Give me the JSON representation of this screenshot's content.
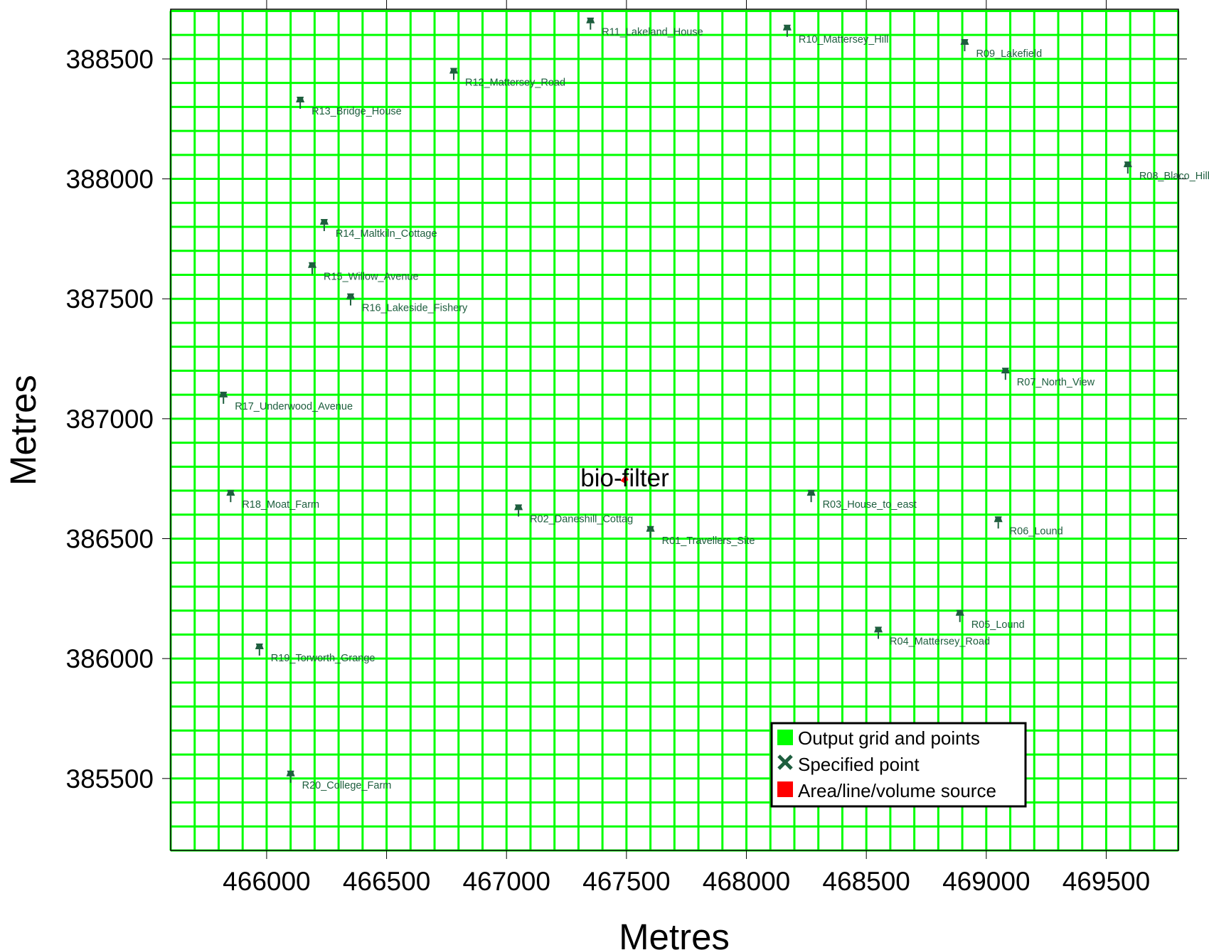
{
  "chart_data": {
    "type": "map",
    "xlabel": "Metres",
    "ylabel": "Metres",
    "xlim": [
      465600,
      469800
    ],
    "ylim": [
      385200,
      388700
    ],
    "x_ticks": [
      466000,
      466500,
      467000,
      467500,
      468000,
      468500,
      469000,
      469500
    ],
    "y_ticks": [
      385500,
      386000,
      386500,
      387000,
      387500,
      388000,
      388500
    ],
    "grid": {
      "x_start": 465600,
      "y_start": 385200,
      "spacing": 100,
      "nx": 42,
      "ny": 35,
      "color": "#00ff00"
    },
    "receptor_color": "#1e5e3e",
    "source_color": "#ff0000",
    "receptors": [
      {
        "label": "R01_Travellers_Site",
        "x": 467600,
        "y": 386520
      },
      {
        "label": "R02_Daneshill_Cottag",
        "x": 467050,
        "y": 386610
      },
      {
        "label": "R03_House_to_east",
        "x": 468270,
        "y": 386670
      },
      {
        "label": "R04_Mattersey_Road",
        "x": 468550,
        "y": 386100
      },
      {
        "label": "R05_Lound",
        "x": 468890,
        "y": 386170
      },
      {
        "label": "R06_Lound",
        "x": 469050,
        "y": 386560
      },
      {
        "label": "R07_North_View",
        "x": 469080,
        "y": 387180
      },
      {
        "label": "R08_Blaco_Hill",
        "x": 469590,
        "y": 388040
      },
      {
        "label": "R09_Lakefield",
        "x": 468910,
        "y": 388550
      },
      {
        "label": "R10_Mattersey_Hill",
        "x": 468170,
        "y": 388610
      },
      {
        "label": "R11_Lakeland_House",
        "x": 467350,
        "y": 388640
      },
      {
        "label": "R12_Mattersey_Road",
        "x": 466780,
        "y": 388430
      },
      {
        "label": "R13_Bridge_House",
        "x": 466140,
        "y": 388310
      },
      {
        "label": "R14_Maltkiln_Cottage",
        "x": 466240,
        "y": 387800
      },
      {
        "label": "R15_Willow_Avenue",
        "x": 466190,
        "y": 387620
      },
      {
        "label": "R16_Lakeside_Fishery",
        "x": 466350,
        "y": 387490
      },
      {
        "label": "R17_Underwood_Avenue",
        "x": 465820,
        "y": 387080
      },
      {
        "label": "R18_Moat_Farm",
        "x": 465850,
        "y": 386670
      },
      {
        "label": "R19_Torworth_Grange",
        "x": 465970,
        "y": 386030
      },
      {
        "label": "R20_College_Farm",
        "x": 466100,
        "y": 385500
      }
    ],
    "sources": [
      {
        "label": "bio-filter",
        "x": 467490,
        "y": 386750
      }
    ],
    "legend": {
      "placement": "bottom-right",
      "entries": [
        {
          "label": "Output grid and points",
          "color": "#00ff00",
          "symbol": "square"
        },
        {
          "label": "Specified point",
          "color": "#1e5e3e",
          "symbol": "cross"
        },
        {
          "label": "Area/line/volume source",
          "color": "#ff0000",
          "symbol": "square"
        }
      ]
    }
  }
}
